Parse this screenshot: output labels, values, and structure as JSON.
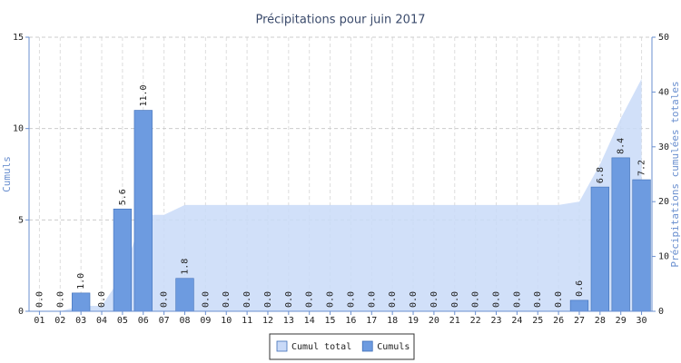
{
  "chart_data": {
    "type": "bar",
    "title": "Précipitations pour juin 2017",
    "y_label": "Cumuls",
    "y2_label": "Précipitations cumulées totales",
    "categories": [
      "01",
      "02",
      "03",
      "04",
      "05",
      "06",
      "07",
      "08",
      "09",
      "10",
      "11",
      "12",
      "13",
      "14",
      "15",
      "16",
      "17",
      "18",
      "19",
      "20",
      "21",
      "22",
      "23",
      "24",
      "25",
      "26",
      "27",
      "28",
      "29",
      "30"
    ],
    "series": [
      {
        "name": "Cumul total",
        "type": "area",
        "axis": "y2",
        "color": "#c9daf8",
        "values": [
          0,
          0,
          1,
          1,
          6.6,
          17.6,
          17.6,
          19.4,
          19.4,
          19.4,
          19.4,
          19.4,
          19.4,
          19.4,
          19.4,
          19.4,
          19.4,
          19.4,
          19.4,
          19.4,
          19.4,
          19.4,
          19.4,
          19.4,
          19.4,
          19.4,
          20,
          26.8,
          35.2,
          42.4
        ]
      },
      {
        "name": "Cumuls",
        "type": "bar",
        "color": "#6d9be0",
        "values": [
          0,
          0,
          1,
          0,
          5.6,
          11,
          0,
          1.8,
          0,
          0,
          0,
          0,
          0,
          0,
          0,
          0,
          0,
          0,
          0,
          0,
          0,
          0,
          0,
          0,
          0,
          0,
          0.6,
          6.8,
          8.4,
          7.2
        ],
        "value_labels": [
          "0.0",
          "0.0",
          "1.0",
          "0.0",
          "5.6",
          "11.0",
          "0.0",
          "1.8",
          "0.0",
          "0.0",
          "0.0",
          "0.0",
          "0.0",
          "0.0",
          "0.0",
          "0.0",
          "0.0",
          "0.0",
          "0.0",
          "0.0",
          "0.0",
          "0.0",
          "0.0",
          "0.0",
          "0.0",
          "0.0",
          "0.6",
          "6.8",
          "8.4",
          "7.2"
        ]
      }
    ],
    "ylim": [
      0,
      15
    ],
    "yticks": [
      0,
      5,
      10,
      15
    ],
    "y2lim": [
      0,
      50
    ],
    "y2ticks": [
      0,
      10,
      20,
      30,
      40,
      50
    ],
    "grid": true
  }
}
